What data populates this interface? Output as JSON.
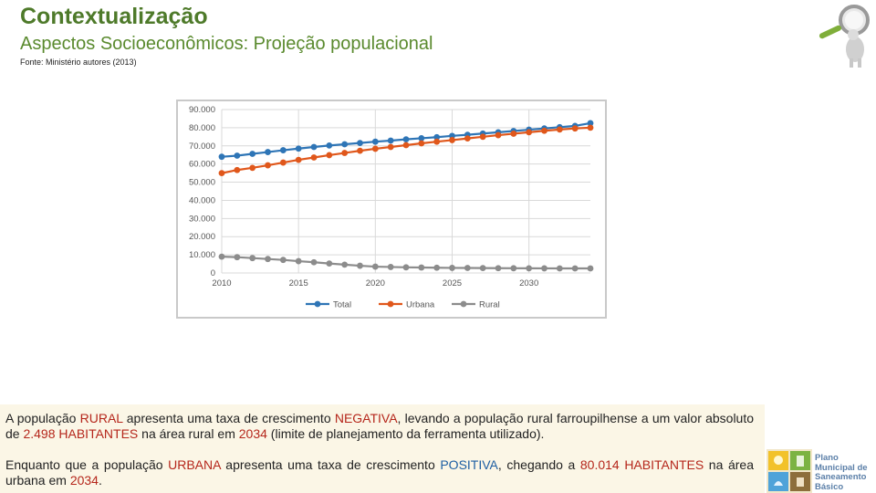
{
  "header": {
    "title": "Contextualização",
    "subtitle": "Aspectos Socioeconômicos: Projeção populacional",
    "source": "Fonte: Ministério autores (2013)"
  },
  "chart_data": {
    "type": "line",
    "x": [
      2010,
      2011,
      2012,
      2013,
      2014,
      2015,
      2016,
      2017,
      2018,
      2019,
      2020,
      2021,
      2022,
      2023,
      2024,
      2025,
      2026,
      2027,
      2028,
      2029,
      2030,
      2031,
      2032,
      2033,
      2034
    ],
    "series": [
      {
        "name": "Total",
        "color": "#2e75b6",
        "values": [
          64000,
          64600,
          65600,
          66600,
          67600,
          68500,
          69400,
          70200,
          70900,
          71600,
          72300,
          72900,
          73600,
          74200,
          74800,
          75500,
          76100,
          76800,
          77500,
          78200,
          78900,
          79600,
          80300,
          81000,
          82500
        ]
      },
      {
        "name": "Urbana",
        "color": "#e0571b",
        "values": [
          55000,
          56700,
          57900,
          59300,
          60800,
          62300,
          63600,
          64900,
          66100,
          67300,
          68400,
          69400,
          70400,
          71400,
          72300,
          73200,
          74100,
          75000,
          75900,
          76700,
          77500,
          78300,
          79000,
          79600,
          80014
        ]
      },
      {
        "name": "Rural",
        "color": "#8c8c8c",
        "values": [
          9000,
          8700,
          8200,
          7700,
          7200,
          6500,
          5900,
          5200,
          4600,
          4000,
          3500,
          3300,
          3100,
          3000,
          2900,
          2800,
          2750,
          2700,
          2650,
          2600,
          2570,
          2550,
          2530,
          2510,
          2498
        ]
      }
    ],
    "ylim": [
      0,
      90000
    ],
    "y_ticks": [
      "0",
      "10.000",
      "20.000",
      "30.000",
      "40.000",
      "50.000",
      "60.000",
      "70.000",
      "80.000",
      "90.000"
    ],
    "x_ticks": [
      "2010",
      "2015",
      "2020",
      "2025",
      "2030"
    ],
    "grid": true,
    "legend": "bottom"
  },
  "text": {
    "p1_a": "A população ",
    "p1_b": "RURAL",
    "p1_c": " apresenta uma taxa de crescimento ",
    "p1_d": "NEGATIVA",
    "p1_e": ", levando a população rural farroupilhense a um valor absoluto de ",
    "p1_f": "2.498 HABITANTES",
    "p1_g": " na área rural em ",
    "p1_h": "2034",
    "p1_i": " (limite de planejamento da ferramenta utilizado).",
    "p2_a": "Enquanto que a população ",
    "p2_b": "URBANA",
    "p2_c": " apresenta uma taxa de crescimento ",
    "p2_d": "POSITIVA",
    "p2_e": ", chegando a ",
    "p2_f": "80.014 HABITANTES",
    "p2_g": " na área urbana em ",
    "p2_h": "2034",
    "p2_i": "."
  },
  "logo": {
    "line1": "Plano",
    "line2": "Municipal de",
    "line3": "Saneamento",
    "line4": "Básico"
  }
}
